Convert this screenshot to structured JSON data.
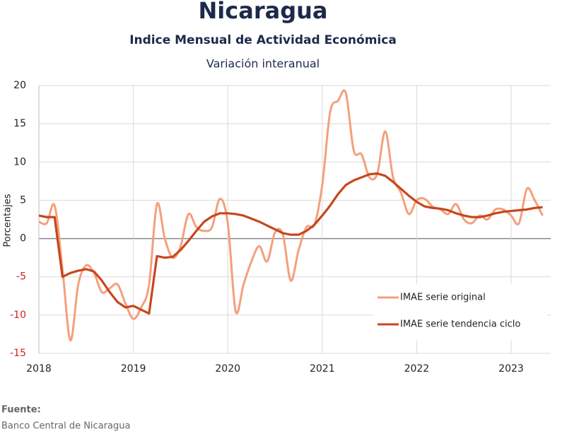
{
  "chart_data": {
    "type": "line",
    "title": "Nicaragua",
    "subtitle": "Indice Mensual de  Actividad Económica",
    "subtitle2": "Variación interanual",
    "y_label": "Porcentajes",
    "source_label": "Fuente:",
    "source": "Banco Central de Nicaragua",
    "categories": [
      "2018",
      null,
      null,
      null,
      null,
      null,
      null,
      null,
      null,
      null,
      null,
      null,
      "2019",
      null,
      null,
      null,
      null,
      null,
      null,
      null,
      null,
      null,
      null,
      null,
      "2020",
      null,
      null,
      null,
      null,
      null,
      null,
      null,
      null,
      null,
      null,
      null,
      "2021",
      null,
      null,
      null,
      null,
      null,
      null,
      null,
      null,
      null,
      null,
      null,
      "2022",
      null,
      null,
      null,
      null,
      null,
      null,
      null,
      null,
      null,
      null,
      null,
      "2023",
      null,
      null,
      null,
      null
    ],
    "series": [
      {
        "name": "IMAE serie original",
        "color": "#f4a07c",
        "smooth": true,
        "values": [
          2.2,
          2.0,
          4.3,
          -4,
          -13.3,
          -6,
          -3.5,
          -4.5,
          -7,
          -6.5,
          -6,
          -8.5,
          -10.5,
          -9,
          -6,
          4.5,
          0,
          -2.5,
          -1,
          3.2,
          1.5,
          1,
          1.5,
          5.2,
          2,
          -9.5,
          -6,
          -3,
          -1,
          -3,
          0.8,
          0.5,
          -5.5,
          -1.5,
          1.5,
          1.8,
          7,
          16.5,
          18,
          19,
          11.5,
          11,
          8,
          8.5,
          14,
          8,
          6,
          3.2,
          5,
          5.2,
          4.2,
          3.8,
          3.2,
          4.5,
          2.5,
          2,
          3,
          2.5,
          3.8,
          3.8,
          3,
          2,
          6.5,
          5,
          3
        ]
      },
      {
        "name": "IMAE serie  tendencia ciclo",
        "color": "#c8461e",
        "smooth": false,
        "values": [
          3,
          2.8,
          2.8,
          -5,
          -4.5,
          -4.2,
          -4,
          -4.3,
          -5.5,
          -7,
          -8.3,
          -9,
          -8.8,
          -9.3,
          -9.8,
          -2.3,
          -2.5,
          -2.4,
          -1.5,
          -0.3,
          1,
          2.2,
          2.9,
          3.3,
          3.3,
          3.2,
          3,
          2.6,
          2.2,
          1.7,
          1.2,
          0.7,
          0.5,
          0.5,
          1,
          1.8,
          3,
          4.3,
          5.8,
          7,
          7.6,
          8,
          8.4,
          8.5,
          8.2,
          7.4,
          6.5,
          5.6,
          4.8,
          4.2,
          4,
          3.9,
          3.7,
          3.3,
          3,
          2.8,
          2.8,
          3,
          3.3,
          3.5,
          3.6,
          3.7,
          3.8,
          4,
          4.1
        ]
      }
    ],
    "ylim": [
      -15,
      20
    ],
    "yticks": [
      -15,
      -10,
      -5,
      0,
      5,
      10,
      15,
      20
    ],
    "grid": true,
    "legend": "lower right"
  }
}
